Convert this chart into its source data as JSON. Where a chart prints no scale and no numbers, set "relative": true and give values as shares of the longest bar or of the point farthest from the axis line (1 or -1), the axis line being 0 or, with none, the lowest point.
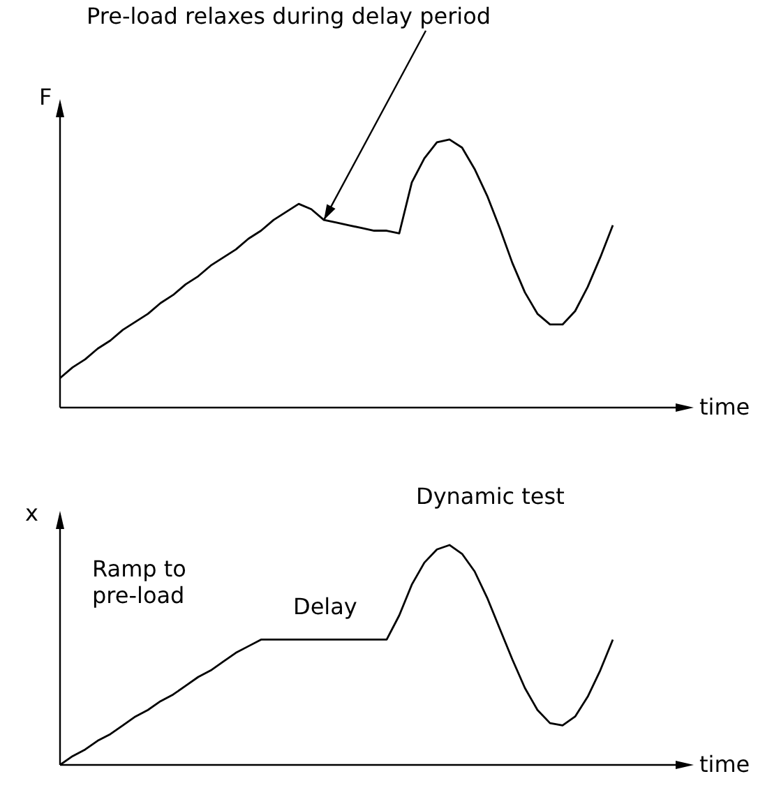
{
  "chart_data": [
    {
      "type": "line",
      "ylabel": "F",
      "xlabel": "time",
      "relative": true,
      "tick_labels": false,
      "marker": "none",
      "legend": false,
      "annotations": [
        "Pre-load relaxes during delay period"
      ],
      "categories": [
        null,
        null,
        null,
        null,
        null,
        null,
        null,
        null,
        null,
        null,
        null,
        null,
        null,
        null,
        null,
        null,
        null,
        null,
        null,
        null,
        null,
        null,
        null,
        null,
        null,
        null,
        null,
        null,
        null,
        null,
        null,
        null,
        null,
        null,
        null,
        null,
        null,
        null,
        null,
        null,
        null,
        null,
        null,
        null,
        null,
        null,
        null,
        null,
        null,
        null,
        null
      ],
      "series": [
        {
          "color": "#000000",
          "values": [
            0.11,
            0.15,
            0.18,
            0.22,
            0.25,
            0.29,
            0.32,
            0.35,
            0.39,
            0.42,
            0.46,
            0.49,
            0.53,
            0.56,
            0.59,
            0.63,
            0.66,
            0.7,
            0.73,
            0.76,
            0.74,
            0.7,
            0.69,
            0.68,
            0.67,
            0.66,
            0.66,
            0.65,
            0.84,
            0.93,
            0.99,
            1.0,
            0.97,
            0.89,
            0.79,
            0.67,
            0.54,
            0.43,
            0.35,
            0.31,
            0.31,
            0.36,
            0.45,
            0.56,
            0.68,
            null,
            null,
            null,
            null,
            null,
            null
          ]
        }
      ]
    },
    {
      "type": "line",
      "ylabel": "x",
      "xlabel": "time",
      "relative": true,
      "tick_labels": false,
      "marker": "none",
      "legend": false,
      "annotations": [
        "Ramp to pre-load",
        "Delay",
        "Dynamic test"
      ],
      "categories": [
        null,
        null,
        null,
        null,
        null,
        null,
        null,
        null,
        null,
        null,
        null,
        null,
        null,
        null,
        null,
        null,
        null,
        null,
        null,
        null,
        null,
        null,
        null,
        null,
        null,
        null,
        null,
        null,
        null,
        null,
        null,
        null,
        null,
        null,
        null,
        null,
        null,
        null,
        null,
        null,
        null,
        null,
        null,
        null,
        null,
        null,
        null,
        null,
        null,
        null,
        null
      ],
      "series": [
        {
          "color": "#000000",
          "values": [
            0,
            0.04,
            0.07,
            0.11,
            0.14,
            0.18,
            0.22,
            0.25,
            0.29,
            0.32,
            0.36,
            0.4,
            0.43,
            0.47,
            0.51,
            0.54,
            0.57,
            0.57,
            0.57,
            0.57,
            0.57,
            0.57,
            0.57,
            0.57,
            0.57,
            0.57,
            0.57,
            0.68,
            0.82,
            0.92,
            0.98,
            1.0,
            0.96,
            0.88,
            0.76,
            0.62,
            0.48,
            0.35,
            0.25,
            0.19,
            0.18,
            0.22,
            0.31,
            0.43,
            0.57,
            null,
            null,
            null,
            null,
            null,
            null
          ]
        }
      ]
    }
  ]
}
